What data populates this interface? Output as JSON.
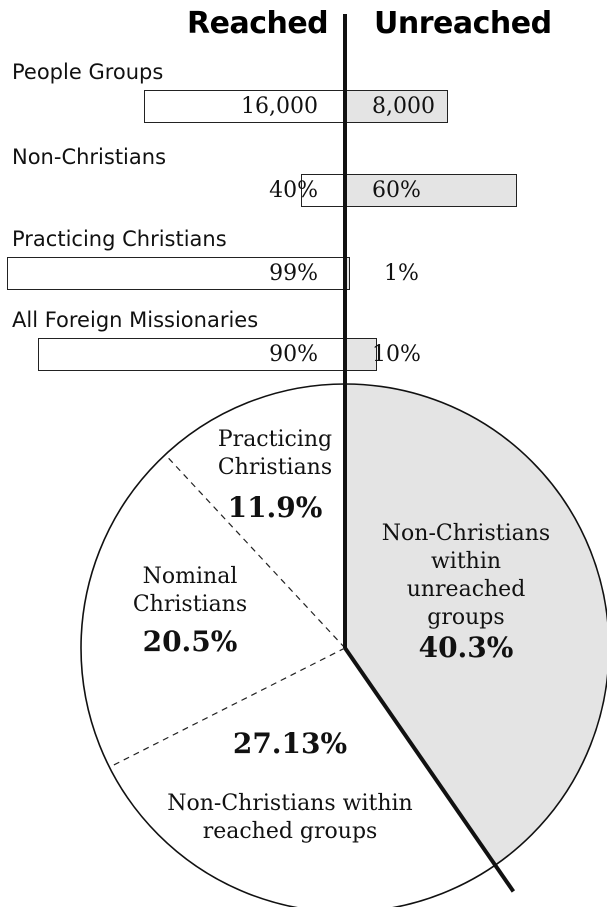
{
  "headers": {
    "reached": "Reached",
    "unreached": "Unreached"
  },
  "chart_data": [
    {
      "type": "bar",
      "orientation": "horizontal",
      "layout": "diverging",
      "series": [
        {
          "name": "Reached",
          "color": "#ffffff"
        },
        {
          "name": "Unreached",
          "color": "#e4e4e4"
        }
      ],
      "rows": [
        {
          "category": "People Groups",
          "reached": 16000,
          "unreached": 8000,
          "reached_label": "16,000",
          "unreached_label": "8,000"
        },
        {
          "category": "Non-Christians",
          "reached": 40,
          "unreached": 60,
          "reached_label": "40%",
          "unreached_label": "60%"
        },
        {
          "category": "Practicing Christians",
          "reached": 99,
          "unreached": 1,
          "reached_label": "99%",
          "unreached_label": "1%"
        },
        {
          "category": "All Foreign Missionaries",
          "reached": 90,
          "unreached": 10,
          "reached_label": "90%",
          "unreached_label": "10%"
        }
      ]
    },
    {
      "type": "pie",
      "slices": [
        {
          "label_lines": [
            "Non-Christians",
            "within",
            "unreached",
            "groups"
          ],
          "value_label": "40.3%",
          "value": 40.3,
          "color": "#e4e4e4"
        },
        {
          "label_lines": [
            "Non-Christians within",
            "reached groups"
          ],
          "value_label": "27.13%",
          "value": 27.13,
          "color": "#ffffff"
        },
        {
          "label_lines": [
            "Nominal",
            "Christians"
          ],
          "value_label": "20.5%",
          "value": 20.5,
          "color": "#ffffff"
        },
        {
          "label_lines": [
            "Practicing",
            "Christians"
          ],
          "value_label": "11.9%",
          "value": 11.9,
          "color": "#ffffff"
        }
      ]
    }
  ]
}
